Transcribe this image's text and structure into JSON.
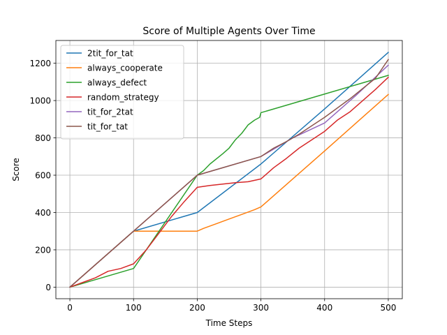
{
  "chart_data": {
    "type": "line",
    "title": "Score of Multiple Agents Over Time",
    "xlabel": "Time Steps",
    "ylabel": "Score",
    "xlim": [
      -22,
      522
    ],
    "ylim": [
      -62,
      1322
    ],
    "xticks": [
      0,
      100,
      200,
      300,
      400,
      500
    ],
    "yticks": [
      0,
      200,
      400,
      600,
      800,
      1000,
      1200
    ],
    "grid": true,
    "legend_position": "top-left",
    "series": [
      {
        "name": "2tit_for_tat",
        "color": "#1f77b4",
        "points": [
          [
            0,
            0
          ],
          [
            100,
            300
          ],
          [
            200,
            400
          ],
          [
            300,
            660
          ],
          [
            400,
            955
          ],
          [
            500,
            1258
          ]
        ]
      },
      {
        "name": "always_cooperate",
        "color": "#ff7f0e",
        "points": [
          [
            0,
            0
          ],
          [
            100,
            300
          ],
          [
            200,
            300
          ],
          [
            210,
            315
          ],
          [
            230,
            340
          ],
          [
            250,
            365
          ],
          [
            270,
            390
          ],
          [
            290,
            415
          ],
          [
            300,
            430
          ],
          [
            400,
            730
          ],
          [
            500,
            1033
          ]
        ]
      },
      {
        "name": "always_defect",
        "color": "#2ca02c",
        "points": [
          [
            0,
            0
          ],
          [
            100,
            100
          ],
          [
            200,
            600
          ],
          [
            210,
            625
          ],
          [
            220,
            660
          ],
          [
            240,
            715
          ],
          [
            250,
            745
          ],
          [
            260,
            790
          ],
          [
            270,
            825
          ],
          [
            280,
            870
          ],
          [
            290,
            895
          ],
          [
            298,
            910
          ],
          [
            300,
            935
          ],
          [
            400,
            1035
          ],
          [
            500,
            1135
          ]
        ]
      },
      {
        "name": "random_strategy",
        "color": "#d62728",
        "points": [
          [
            0,
            0
          ],
          [
            20,
            25
          ],
          [
            40,
            50
          ],
          [
            60,
            85
          ],
          [
            80,
            100
          ],
          [
            100,
            125
          ],
          [
            120,
            200
          ],
          [
            140,
            290
          ],
          [
            160,
            380
          ],
          [
            180,
            460
          ],
          [
            200,
            535
          ],
          [
            220,
            545
          ],
          [
            260,
            560
          ],
          [
            280,
            565
          ],
          [
            300,
            580
          ],
          [
            320,
            640
          ],
          [
            340,
            690
          ],
          [
            360,
            745
          ],
          [
            380,
            790
          ],
          [
            400,
            835
          ],
          [
            420,
            895
          ],
          [
            440,
            940
          ],
          [
            460,
            1000
          ],
          [
            480,
            1060
          ],
          [
            500,
            1125
          ]
        ]
      },
      {
        "name": "tit_for_2tat",
        "color": "#9467bd",
        "points": [
          [
            0,
            0
          ],
          [
            100,
            300
          ],
          [
            200,
            600
          ],
          [
            300,
            700
          ],
          [
            350,
            800
          ],
          [
            400,
            880
          ],
          [
            450,
            1030
          ],
          [
            500,
            1190
          ]
        ]
      },
      {
        "name": "tit_for_tat",
        "color": "#8c564b",
        "points": [
          [
            0,
            0
          ],
          [
            100,
            300
          ],
          [
            200,
            600
          ],
          [
            300,
            700
          ],
          [
            320,
            745
          ],
          [
            340,
            780
          ],
          [
            360,
            820
          ],
          [
            380,
            865
          ],
          [
            400,
            910
          ],
          [
            420,
            960
          ],
          [
            440,
            1010
          ],
          [
            460,
            1065
          ],
          [
            480,
            1120
          ],
          [
            500,
            1220
          ]
        ]
      }
    ]
  }
}
